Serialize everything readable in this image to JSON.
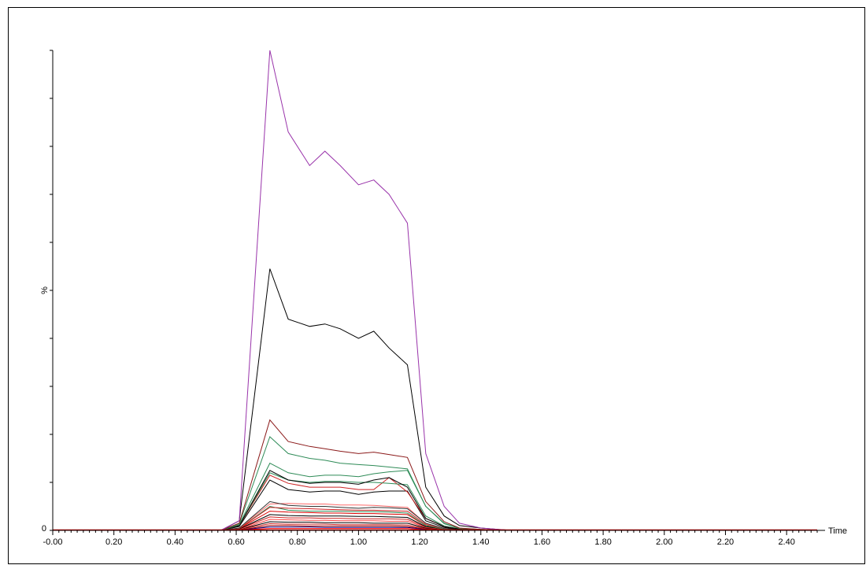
{
  "chart_data": {
    "type": "line",
    "title": "",
    "xlabel": "Time",
    "ylabel": "%",
    "xlim": [
      0.0,
      2.5
    ],
    "ylim": [
      0,
      100
    ],
    "x_ticks": [
      "-0.00",
      "0.20",
      "0.40",
      "0.60",
      "0.80",
      "1.00",
      "1.20",
      "1.40",
      "1.60",
      "1.80",
      "2.00",
      "2.20",
      "2.40"
    ],
    "y_ticks": [
      "0"
    ],
    "x": [
      0.0,
      0.55,
      0.61,
      0.71,
      0.77,
      0.84,
      0.89,
      0.94,
      1.0,
      1.05,
      1.1,
      1.16,
      1.22,
      1.28,
      1.33,
      1.4,
      1.5,
      2.5
    ],
    "series": [
      {
        "color": "#9933aa",
        "values": [
          0,
          0,
          2,
          100,
          83,
          76,
          79,
          76,
          72,
          73,
          70,
          64,
          16,
          5,
          1.5,
          0.5,
          0,
          0
        ]
      },
      {
        "color": "#000000",
        "values": [
          0,
          0,
          2,
          54.5,
          44,
          42.5,
          43,
          42,
          40,
          41.5,
          38,
          34.5,
          9,
          3,
          1,
          0.5,
          0,
          0
        ]
      },
      {
        "color": "#8b1a1a",
        "values": [
          0,
          0,
          1.5,
          23,
          18.5,
          17.5,
          17,
          16.5,
          16,
          16.3,
          15.8,
          15.2,
          6,
          1.8,
          0.5,
          0.2,
          0,
          0
        ]
      },
      {
        "color": "#2e8b57",
        "values": [
          0,
          0,
          1.4,
          19.5,
          16,
          15,
          14.6,
          14,
          13.7,
          13.5,
          13.2,
          12.8,
          5,
          1.5,
          0.4,
          0.2,
          0,
          0
        ]
      },
      {
        "color": "#2e8b57",
        "values": [
          0,
          0,
          1.2,
          14,
          12,
          11.2,
          11.5,
          11.5,
          11.2,
          11.8,
          12.2,
          12.5,
          5,
          1.4,
          0.4,
          0.2,
          0,
          0
        ]
      },
      {
        "color": "#000000",
        "values": [
          0,
          0,
          1,
          12.5,
          10.5,
          9.8,
          10,
          10,
          9.6,
          10.5,
          11,
          9,
          2.5,
          0.8,
          0.3,
          0.1,
          0,
          0
        ]
      },
      {
        "color": "#2e8b57",
        "values": [
          0,
          0,
          1,
          12,
          10.5,
          10,
          10.2,
          10.2,
          10,
          10,
          9.8,
          9.5,
          3,
          0.9,
          0.3,
          0.1,
          0,
          0
        ]
      },
      {
        "color": "#cc2222",
        "values": [
          0,
          0,
          1,
          11.5,
          9.8,
          9,
          9,
          9,
          8.5,
          8.5,
          11,
          8,
          2.5,
          0.8,
          0.3,
          0.1,
          0,
          0
        ]
      },
      {
        "color": "#000000",
        "values": [
          0,
          0,
          0.8,
          10.5,
          8.5,
          8,
          8.2,
          8.2,
          7.5,
          8,
          8.2,
          8.2,
          2,
          0.6,
          0.2,
          0.1,
          0,
          0
        ]
      },
      {
        "color": "#333333",
        "values": [
          0,
          0,
          0.5,
          6,
          5.2,
          5,
          5,
          4.8,
          4.6,
          4.8,
          4.7,
          4.5,
          1.5,
          0.4,
          0.2,
          0.1,
          0,
          0
        ]
      },
      {
        "color": "#ff6a6a",
        "values": [
          0,
          0,
          0.5,
          5.5,
          5.6,
          5.5,
          5.5,
          5.3,
          5.3,
          5.2,
          5,
          4.8,
          1.4,
          0.4,
          0.2,
          0.1,
          0,
          0
        ]
      },
      {
        "color": "#cc2222",
        "values": [
          0,
          0,
          0.4,
          4.8,
          4.6,
          4.5,
          4.4,
          4.3,
          4.2,
          4.2,
          4.1,
          4,
          1.2,
          0.4,
          0.1,
          0.1,
          0,
          0
        ]
      },
      {
        "color": "#2e8b57",
        "values": [
          0,
          0,
          0.4,
          5,
          4.2,
          4,
          4,
          4,
          3.9,
          3.9,
          3.8,
          3.6,
          1,
          0.3,
          0.1,
          0.1,
          0,
          0
        ]
      },
      {
        "color": "#dd0000",
        "values": [
          0,
          0,
          0.4,
          4,
          3.8,
          3.7,
          3.6,
          3.6,
          3.5,
          3.5,
          3.4,
          3.3,
          1,
          0.3,
          0.1,
          0.1,
          0,
          0
        ]
      },
      {
        "color": "#000000",
        "values": [
          0,
          0,
          0.3,
          3.3,
          3.1,
          3,
          3,
          3,
          2.9,
          2.9,
          2.8,
          2.7,
          0.8,
          0.3,
          0.1,
          0,
          0,
          0
        ]
      },
      {
        "color": "#cc2222",
        "values": [
          0,
          0,
          0.3,
          2.8,
          2.6,
          2.6,
          2.5,
          2.5,
          2.4,
          2.4,
          2.4,
          2.3,
          0.7,
          0.2,
          0.1,
          0,
          0,
          0
        ]
      },
      {
        "color": "#ff4444",
        "values": [
          0,
          0,
          0.2,
          2.3,
          2.2,
          2.1,
          2.1,
          2,
          2,
          2,
          1.9,
          1.9,
          0.6,
          0.2,
          0.1,
          0,
          0,
          0
        ]
      },
      {
        "color": "#000000",
        "values": [
          0,
          0,
          0.2,
          1.8,
          1.7,
          1.7,
          1.6,
          1.6,
          1.6,
          1.5,
          1.5,
          1.5,
          0.5,
          0.2,
          0.1,
          0,
          0,
          0
        ]
      },
      {
        "color": "#cc2222",
        "values": [
          0,
          0,
          0.2,
          1.4,
          1.3,
          1.3,
          1.3,
          1.2,
          1.2,
          1.2,
          1.2,
          1.1,
          0.4,
          0.1,
          0,
          0,
          0,
          0
        ]
      },
      {
        "color": "#990000",
        "values": [
          0,
          0,
          0.1,
          1,
          1,
          0.9,
          0.9,
          0.9,
          0.9,
          0.9,
          0.9,
          0.8,
          0.3,
          0.1,
          0,
          0,
          0,
          0
        ]
      },
      {
        "color": "#000088",
        "values": [
          0,
          0,
          0.1,
          0.7,
          0.7,
          0.7,
          0.6,
          0.6,
          0.6,
          0.6,
          0.6,
          0.6,
          0.2,
          0.1,
          0,
          0,
          0,
          0
        ]
      },
      {
        "color": "#ff0000",
        "values": [
          0,
          0,
          0.1,
          0.4,
          0.4,
          0.4,
          0.4,
          0.4,
          0.4,
          0.4,
          0.4,
          0.4,
          0.1,
          0.05,
          0,
          0,
          0,
          0
        ]
      }
    ]
  }
}
